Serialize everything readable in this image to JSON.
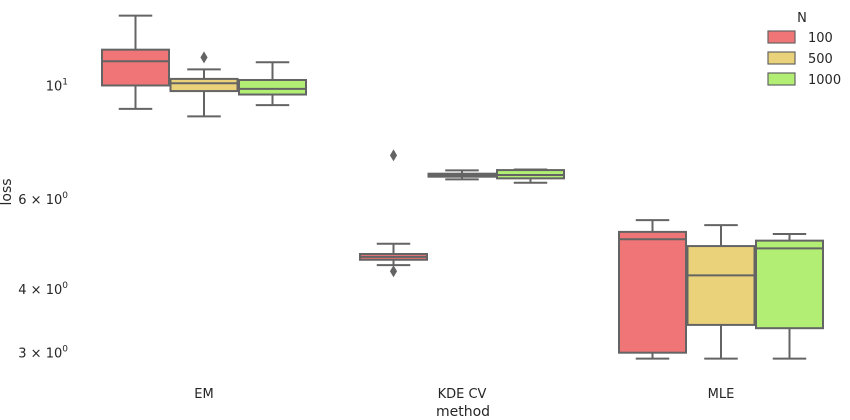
{
  "chart_data": {
    "type": "box",
    "xlabel": "method",
    "ylabel": "loss",
    "yscale": "log",
    "ylim": [
      2.75,
      14.5
    ],
    "grid": false,
    "legend_position": "top-right",
    "legend_title": "N",
    "categories": [
      "EM",
      "KDE CV",
      "MLE"
    ],
    "y_ticks": [
      {
        "value": 10,
        "base": "10",
        "exp": "1"
      },
      {
        "value": 6,
        "base": "6 × 10",
        "exp": "0"
      },
      {
        "value": 4,
        "base": "4 × 10",
        "exp": "0"
      },
      {
        "value": 3,
        "base": "3 × 10",
        "exp": "0"
      }
    ],
    "series": [
      {
        "name": "100",
        "color": "#f07576",
        "boxes": [
          {
            "category": "EM",
            "whisker_low": 9.0,
            "q1": 10.0,
            "median": 11.15,
            "q3": 11.75,
            "whisker_high": 13.7,
            "outliers": []
          },
          {
            "category": "KDE CV",
            "whisker_low": 4.45,
            "q1": 4.56,
            "median": 4.62,
            "q3": 4.68,
            "whisker_high": 4.9,
            "outliers": [
              4.33,
              7.3
            ]
          },
          {
            "category": "MLE",
            "whisker_low": 2.92,
            "q1": 3.0,
            "median": 5.0,
            "q3": 5.17,
            "whisker_high": 5.45,
            "outliers": []
          }
        ]
      },
      {
        "name": "500",
        "color": "#ead27a",
        "boxes": [
          {
            "category": "EM",
            "whisker_low": 8.7,
            "q1": 9.75,
            "median": 10.1,
            "q3": 10.3,
            "whisker_high": 10.75,
            "outliers": [
              11.35
            ]
          },
          {
            "category": "KDE CV",
            "whisker_low": 6.55,
            "q1": 6.63,
            "median": 6.67,
            "q3": 6.72,
            "whisker_high": 6.82,
            "outliers": []
          },
          {
            "category": "MLE",
            "whisker_low": 2.92,
            "q1": 3.4,
            "median": 4.25,
            "q3": 4.85,
            "whisker_high": 5.33,
            "outliers": []
          }
        ]
      },
      {
        "name": "1000",
        "color": "#b1ee73",
        "boxes": [
          {
            "category": "EM",
            "whisker_low": 9.15,
            "q1": 9.6,
            "median": 9.85,
            "q3": 10.25,
            "whisker_high": 11.1,
            "outliers": []
          },
          {
            "category": "KDE CV",
            "whisker_low": 6.45,
            "q1": 6.58,
            "median": 6.68,
            "q3": 6.83,
            "whisker_high": 6.85,
            "outliers": []
          },
          {
            "category": "MLE",
            "whisker_low": 2.92,
            "q1": 3.35,
            "median": 4.8,
            "q3": 4.97,
            "whisker_high": 5.12,
            "outliers": []
          }
        ]
      }
    ]
  }
}
